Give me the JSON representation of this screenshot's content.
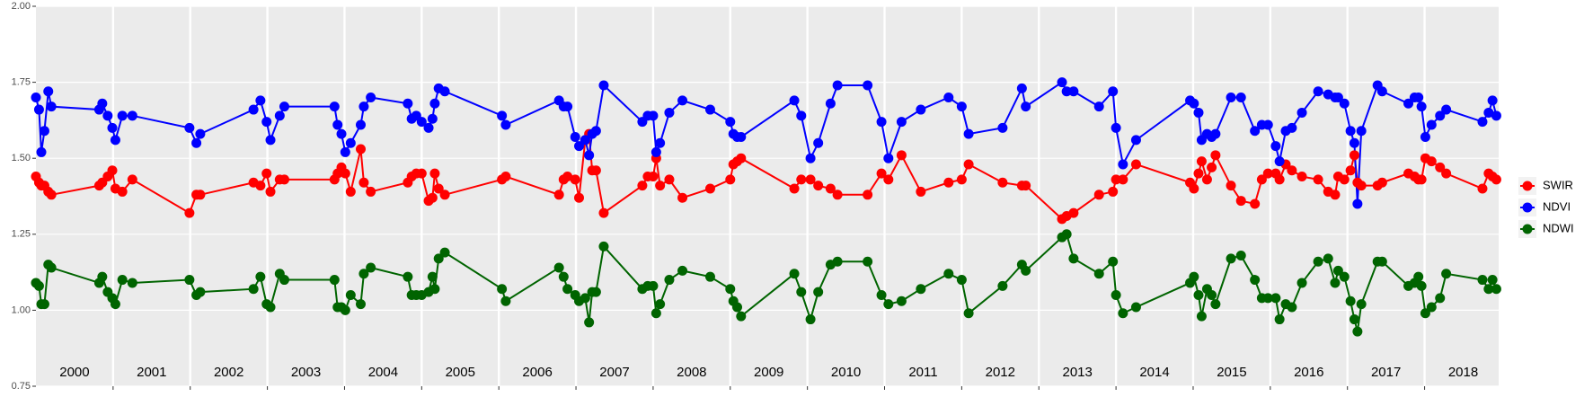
{
  "chart_data": {
    "type": "line",
    "x": [
      2000.0,
      2000.04,
      2000.07,
      2000.11,
      2000.16,
      2000.2,
      2000.82,
      2000.86,
      2000.93,
      2000.99,
      2001.03,
      2001.12,
      2001.25,
      2001.99,
      2002.08,
      2002.13,
      2002.82,
      2002.91,
      2002.99,
      2003.04,
      2003.16,
      2003.22,
      2003.87,
      2003.91,
      2003.96,
      2004.01,
      2004.08,
      2004.21,
      2004.25,
      2004.34,
      2004.82,
      2004.87,
      2004.93,
      2005.0,
      2005.09,
      2005.14,
      2005.17,
      2005.22,
      2005.3,
      2006.04,
      2006.09,
      2006.78,
      2006.84,
      2006.89,
      2006.99,
      2007.04,
      2007.12,
      2007.17,
      2007.21,
      2007.26,
      2007.36,
      2007.86,
      2007.93,
      2008.0,
      2008.04,
      2008.09,
      2008.21,
      2008.38,
      2008.74,
      2009.0,
      2009.04,
      2009.09,
      2009.14,
      2009.83,
      2009.92,
      2010.04,
      2010.14,
      2010.3,
      2010.39,
      2010.78,
      2010.96,
      2011.05,
      2011.22,
      2011.47,
      2011.83,
      2012.0,
      2012.09,
      2012.53,
      2012.78,
      2012.83,
      2013.3,
      2013.36,
      2013.45,
      2013.78,
      2013.96,
      2014.0,
      2014.09,
      2014.26,
      2014.96,
      2015.01,
      2015.07,
      2015.11,
      2015.18,
      2015.24,
      2015.29,
      2015.49,
      2015.62,
      2015.8,
      2015.89,
      2015.97,
      2016.07,
      2016.12,
      2016.2,
      2016.28,
      2016.41,
      2016.62,
      2016.75,
      2016.84,
      2016.88,
      2016.96,
      2017.04,
      2017.09,
      2017.13,
      2017.18,
      2017.39,
      2017.45,
      2017.79,
      2017.87,
      2017.92,
      2017.96,
      2018.01,
      2018.09,
      2018.2,
      2018.28,
      2018.75,
      2018.83,
      2018.88,
      2018.93
    ],
    "series": [
      {
        "name": "SWIR",
        "color": "#ff0000",
        "values": [
          1.44,
          1.42,
          1.41,
          1.41,
          1.39,
          1.38,
          1.41,
          1.42,
          1.44,
          1.46,
          1.4,
          1.39,
          1.43,
          1.32,
          1.38,
          1.38,
          1.42,
          1.41,
          1.45,
          1.39,
          1.43,
          1.43,
          1.43,
          1.45,
          1.47,
          1.45,
          1.39,
          1.53,
          1.42,
          1.39,
          1.42,
          1.44,
          1.45,
          1.45,
          1.36,
          1.37,
          1.45,
          1.4,
          1.38,
          1.43,
          1.44,
          1.38,
          1.43,
          1.44,
          1.43,
          1.37,
          1.56,
          1.58,
          1.46,
          1.46,
          1.32,
          1.41,
          1.44,
          1.44,
          1.5,
          1.41,
          1.43,
          1.37,
          1.4,
          1.43,
          1.48,
          1.49,
          1.5,
          1.4,
          1.43,
          1.43,
          1.41,
          1.4,
          1.38,
          1.38,
          1.45,
          1.43,
          1.51,
          1.39,
          1.42,
          1.43,
          1.48,
          1.42,
          1.41,
          1.41,
          1.3,
          1.31,
          1.32,
          1.38,
          1.39,
          1.43,
          1.43,
          1.48,
          1.42,
          1.4,
          1.45,
          1.49,
          1.43,
          1.47,
          1.51,
          1.41,
          1.36,
          1.35,
          1.43,
          1.45,
          1.45,
          1.43,
          1.48,
          1.46,
          1.44,
          1.43,
          1.39,
          1.38,
          1.44,
          1.43,
          1.46,
          1.51,
          1.42,
          1.41,
          1.41,
          1.42,
          1.45,
          1.44,
          1.43,
          1.43,
          1.5,
          1.49,
          1.47,
          1.45,
          1.4,
          1.45,
          1.44,
          1.43
        ]
      },
      {
        "name": "NDVI",
        "color": "#0000ff",
        "values": [
          1.7,
          1.66,
          1.52,
          1.59,
          1.72,
          1.67,
          1.66,
          1.68,
          1.64,
          1.6,
          1.56,
          1.64,
          1.64,
          1.6,
          1.55,
          1.58,
          1.66,
          1.69,
          1.62,
          1.56,
          1.64,
          1.67,
          1.67,
          1.61,
          1.58,
          1.52,
          1.55,
          1.61,
          1.67,
          1.7,
          1.68,
          1.63,
          1.64,
          1.62,
          1.6,
          1.63,
          1.68,
          1.73,
          1.72,
          1.64,
          1.61,
          1.69,
          1.67,
          1.67,
          1.57,
          1.54,
          1.56,
          1.51,
          1.58,
          1.59,
          1.74,
          1.62,
          1.64,
          1.64,
          1.52,
          1.55,
          1.65,
          1.69,
          1.66,
          1.62,
          1.58,
          1.57,
          1.57,
          1.69,
          1.64,
          1.5,
          1.55,
          1.68,
          1.74,
          1.74,
          1.62,
          1.5,
          1.62,
          1.66,
          1.7,
          1.67,
          1.58,
          1.6,
          1.73,
          1.67,
          1.75,
          1.72,
          1.72,
          1.67,
          1.72,
          1.6,
          1.48,
          1.56,
          1.69,
          1.68,
          1.65,
          1.56,
          1.58,
          1.57,
          1.58,
          1.7,
          1.7,
          1.59,
          1.61,
          1.61,
          1.54,
          1.49,
          1.59,
          1.6,
          1.65,
          1.72,
          1.71,
          1.7,
          1.7,
          1.68,
          1.59,
          1.55,
          1.35,
          1.59,
          1.74,
          1.72,
          1.68,
          1.7,
          1.7,
          1.67,
          1.57,
          1.61,
          1.64,
          1.66,
          1.62,
          1.65,
          1.69,
          1.64
        ]
      },
      {
        "name": "NDWI",
        "color": "#006400",
        "values": [
          1.09,
          1.08,
          1.02,
          1.02,
          1.15,
          1.14,
          1.09,
          1.11,
          1.06,
          1.04,
          1.02,
          1.1,
          1.09,
          1.1,
          1.05,
          1.06,
          1.07,
          1.11,
          1.02,
          1.01,
          1.12,
          1.1,
          1.1,
          1.01,
          1.01,
          1.0,
          1.05,
          1.02,
          1.12,
          1.14,
          1.11,
          1.05,
          1.05,
          1.05,
          1.06,
          1.11,
          1.07,
          1.17,
          1.19,
          1.07,
          1.03,
          1.14,
          1.11,
          1.07,
          1.05,
          1.03,
          1.04,
          0.96,
          1.06,
          1.06,
          1.21,
          1.07,
          1.08,
          1.08,
          0.99,
          1.02,
          1.1,
          1.13,
          1.11,
          1.07,
          1.03,
          1.01,
          0.98,
          1.12,
          1.06,
          0.97,
          1.06,
          1.15,
          1.16,
          1.16,
          1.05,
          1.02,
          1.03,
          1.07,
          1.12,
          1.1,
          0.99,
          1.08,
          1.15,
          1.13,
          1.24,
          1.25,
          1.17,
          1.12,
          1.16,
          1.05,
          0.99,
          1.01,
          1.09,
          1.11,
          1.05,
          0.98,
          1.07,
          1.05,
          1.02,
          1.17,
          1.18,
          1.1,
          1.04,
          1.04,
          1.04,
          0.97,
          1.02,
          1.01,
          1.09,
          1.16,
          1.17,
          1.09,
          1.13,
          1.11,
          1.03,
          0.97,
          0.93,
          1.02,
          1.16,
          1.16,
          1.08,
          1.09,
          1.11,
          1.08,
          0.99,
          1.01,
          1.04,
          1.12,
          1.1,
          1.07,
          1.1,
          1.07
        ]
      }
    ],
    "xlim": [
      2000,
      2018.96
    ],
    "xticks": [
      {
        "value": 2000.5,
        "label": "2000"
      },
      {
        "value": 2001.5,
        "label": "2001"
      },
      {
        "value": 2002.5,
        "label": "2002"
      },
      {
        "value": 2003.5,
        "label": "2003"
      },
      {
        "value": 2004.5,
        "label": "2004"
      },
      {
        "value": 2005.5,
        "label": "2005"
      },
      {
        "value": 2006.5,
        "label": "2006"
      },
      {
        "value": 2007.5,
        "label": "2007"
      },
      {
        "value": 2008.5,
        "label": "2008"
      },
      {
        "value": 2009.5,
        "label": "2009"
      },
      {
        "value": 2010.5,
        "label": "2010"
      },
      {
        "value": 2011.5,
        "label": "2011"
      },
      {
        "value": 2012.5,
        "label": "2012"
      },
      {
        "value": 2013.5,
        "label": "2013"
      },
      {
        "value": 2014.5,
        "label": "2014"
      },
      {
        "value": 2015.5,
        "label": "2015"
      },
      {
        "value": 2016.5,
        "label": "2016"
      },
      {
        "value": 2017.5,
        "label": "2017"
      },
      {
        "value": 2018.5,
        "label": "2018"
      }
    ],
    "xgrid": [
      2001,
      2002,
      2003,
      2004,
      2005,
      2006,
      2007,
      2008,
      2009,
      2010,
      2011,
      2012,
      2013,
      2014,
      2015,
      2016,
      2017,
      2018
    ],
    "ylim": [
      0.75,
      2.0
    ],
    "yticks": [
      0.75,
      {
        "value": 1.0,
        "label": "1.00"
      },
      1.25,
      {
        "value": 1.5,
        "label": "1.50"
      },
      1.75,
      {
        "value": 2.0,
        "label": "2.00"
      }
    ],
    "grid": true,
    "legend": "right"
  }
}
